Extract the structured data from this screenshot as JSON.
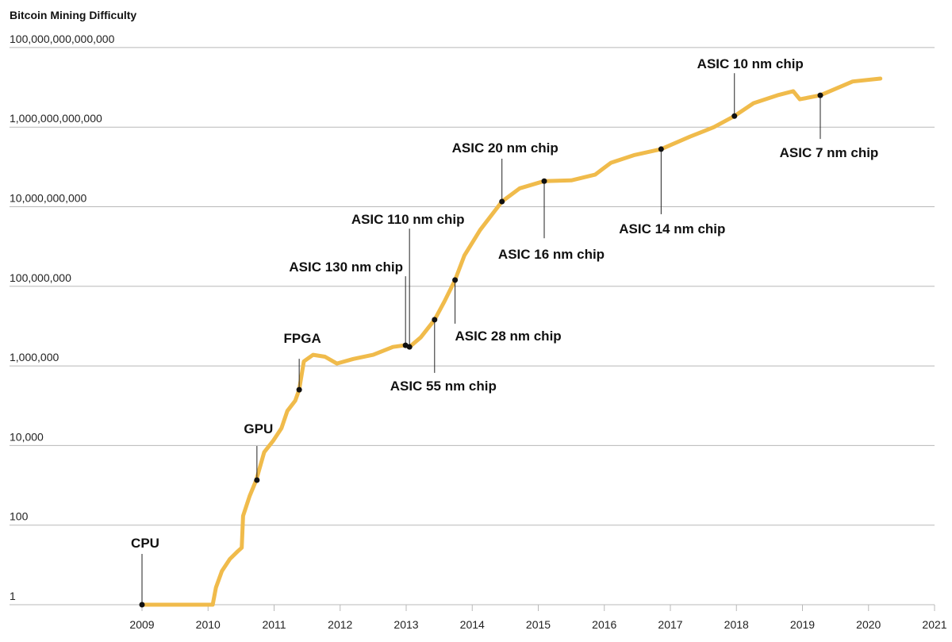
{
  "chart_data": {
    "type": "line",
    "title": "Bitcoin Mining Difficulty",
    "xlabel": "",
    "ylabel": "",
    "y_scale": "log",
    "ylim": [
      1,
      100000000000000
    ],
    "xlim": [
      2009,
      2021
    ],
    "grid": "horizontal",
    "line_color": "#f0bb4b",
    "y_ticks": [
      {
        "value": 1,
        "label": "1"
      },
      {
        "value": 100,
        "label": "100"
      },
      {
        "value": 10000,
        "label": "10,000"
      },
      {
        "value": 1000000,
        "label": "1,000,000"
      },
      {
        "value": 100000000,
        "label": "100,000,000"
      },
      {
        "value": 10000000000,
        "label": "10,000,000,000"
      },
      {
        "value": 1000000000000,
        "label": "1,000,000,000,000"
      },
      {
        "value": 100000000000000,
        "label": "100,000,000,000,000"
      }
    ],
    "x_ticks": [
      "2009",
      "2010",
      "2011",
      "2012",
      "2013",
      "2014",
      "2015",
      "2016",
      "2017",
      "2018",
      "2019",
      "2020",
      "2021"
    ],
    "series": [
      {
        "points": [
          [
            2009.0,
            1
          ],
          [
            2010.07,
            1
          ],
          [
            2010.12,
            2.7
          ],
          [
            2010.21,
            7
          ],
          [
            2010.33,
            14
          ],
          [
            2010.45,
            22
          ],
          [
            2010.51,
            27
          ],
          [
            2010.53,
            170
          ],
          [
            2010.63,
            540
          ],
          [
            2010.73,
            1350
          ],
          [
            2010.85,
            6800
          ],
          [
            2010.99,
            13500
          ],
          [
            2011.11,
            27000
          ],
          [
            2011.2,
            74000
          ],
          [
            2011.32,
            133000
          ],
          [
            2011.38,
            252000
          ],
          [
            2011.45,
            1300000
          ],
          [
            2011.59,
            1900000
          ],
          [
            2011.77,
            1700000
          ],
          [
            2011.95,
            1150000
          ],
          [
            2012.2,
            1500000
          ],
          [
            2012.5,
            1900000
          ],
          [
            2012.8,
            3000000
          ],
          [
            2012.98,
            3300000
          ],
          [
            2013.05,
            3000000
          ],
          [
            2013.22,
            5200000
          ],
          [
            2013.43,
            14500000
          ],
          [
            2013.58,
            42000000
          ],
          [
            2013.74,
            144000000
          ],
          [
            2013.88,
            590000000
          ],
          [
            2014.12,
            2600000000
          ],
          [
            2014.45,
            13500000000
          ],
          [
            2014.72,
            29000000000
          ],
          [
            2015.09,
            44000000000
          ],
          [
            2015.5,
            46000000000
          ],
          [
            2015.86,
            64000000000
          ],
          [
            2016.1,
            127000000000
          ],
          [
            2016.46,
            200000000000
          ],
          [
            2016.86,
            280000000000
          ],
          [
            2017.3,
            580000000000
          ],
          [
            2017.66,
            1000000000000
          ],
          [
            2017.97,
            1900000000000
          ],
          [
            2018.26,
            4000000000000
          ],
          [
            2018.62,
            6300000000000
          ],
          [
            2018.86,
            8000000000000
          ],
          [
            2018.96,
            5000000000000
          ],
          [
            2019.27,
            6300000000000
          ],
          [
            2019.76,
            14000000000000
          ],
          [
            2020.18,
            16600000000000
          ]
        ]
      }
    ],
    "annotations": [
      {
        "label": "CPU",
        "x": 2009.0,
        "y": 1,
        "position": "above"
      },
      {
        "label": "GPU",
        "x": 2010.74,
        "y": 1350,
        "position": "above"
      },
      {
        "label": "FPGA",
        "x": 2011.38,
        "y": 252000,
        "position": "above"
      },
      {
        "label": "ASIC 130 nm chip",
        "x": 2012.99,
        "y": 3300000,
        "position": "above"
      },
      {
        "label": "ASIC 110 nm chip",
        "x": 2013.05,
        "y": 3000000,
        "position": "above"
      },
      {
        "label": "ASIC 55 nm chip",
        "x": 2013.43,
        "y": 14500000,
        "position": "below"
      },
      {
        "label": "ASIC 28 nm chip",
        "x": 2013.74,
        "y": 144000000,
        "position": "below"
      },
      {
        "label": "ASIC 20 nm chip",
        "x": 2014.45,
        "y": 13500000000,
        "position": "above"
      },
      {
        "label": "ASIC 16 nm chip",
        "x": 2015.09,
        "y": 44000000000,
        "position": "below"
      },
      {
        "label": "ASIC 14 nm chip",
        "x": 2016.86,
        "y": 280000000000,
        "position": "below"
      },
      {
        "label": "ASIC 10 nm chip",
        "x": 2017.97,
        "y": 1900000000000,
        "position": "above"
      },
      {
        "label": "ASIC 7 nm chip",
        "x": 2019.27,
        "y": 6300000000000,
        "position": "below"
      }
    ]
  }
}
